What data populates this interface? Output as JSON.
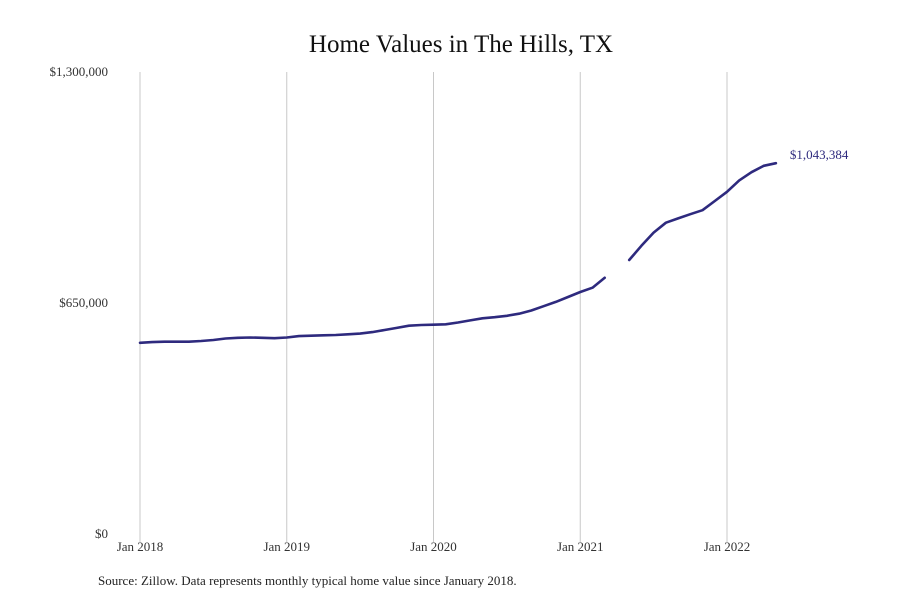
{
  "title": "Home Values in The Hills, TX",
  "source": "Source: Zillow. Data represents monthly typical home value since January 2018.",
  "colors": {
    "line": "#2e2a7e",
    "grid": "#c8c8c8",
    "label": "#2e2a7e"
  },
  "chart_data": {
    "type": "line",
    "title": "Home Values in The Hills, TX",
    "xlabel": "",
    "ylabel": "",
    "ylim": [
      0,
      1300000
    ],
    "yticks": [
      0,
      650000,
      1300000
    ],
    "ytick_labels": [
      "$0",
      "$650,000",
      "$1,300,000"
    ],
    "xticks": [
      "2018-01",
      "2019-01",
      "2020-01",
      "2021-01",
      "2022-01"
    ],
    "xtick_labels": [
      "Jan 2018",
      "Jan 2019",
      "Jan 2020",
      "Jan 2021",
      "Jan 2022"
    ],
    "xlim": [
      "2018-01",
      "2022-05"
    ],
    "grid": "vertical",
    "legend": "none",
    "end_label": "$1,043,384",
    "series": [
      {
        "x": [
          "2018-01",
          "2018-02",
          "2018-03",
          "2018-04",
          "2018-05",
          "2018-06",
          "2018-07",
          "2018-08",
          "2018-09",
          "2018-10",
          "2018-11",
          "2018-12",
          "2019-01",
          "2019-02",
          "2019-03",
          "2019-04",
          "2019-05",
          "2019-06",
          "2019-07",
          "2019-08",
          "2019-09",
          "2019-10",
          "2019-11",
          "2019-12",
          "2020-01",
          "2020-02",
          "2020-03",
          "2020-04",
          "2020-05",
          "2020-06",
          "2020-07",
          "2020-08",
          "2020-09",
          "2020-10",
          "2020-11",
          "2020-12",
          "2021-01",
          "2021-02",
          "2021-03",
          "2021-04",
          "2021-05",
          "2021-06",
          "2021-07",
          "2021-08",
          "2021-09",
          "2021-10",
          "2021-11",
          "2021-12",
          "2022-01",
          "2022-02",
          "2022-03",
          "2022-04",
          "2022-05"
        ],
        "values": [
          538000,
          540000,
          541000,
          541000,
          541000,
          543000,
          546000,
          550000,
          552000,
          553000,
          552000,
          551000,
          553000,
          557000,
          558000,
          559000,
          560000,
          562000,
          564000,
          568000,
          574000,
          580000,
          586000,
          588000,
          589000,
          590000,
          595000,
          601000,
          607000,
          610000,
          614000,
          620000,
          629000,
          641000,
          653000,
          667000,
          681000,
          693000,
          721000,
          null,
          771000,
          811000,
          848000,
          876000,
          888000,
          900000,
          911000,
          937000,
          963000,
          995000,
          1018000,
          1036000,
          1043384
        ]
      }
    ]
  }
}
